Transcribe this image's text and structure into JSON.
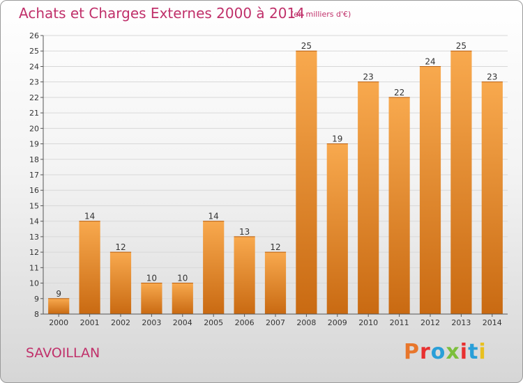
{
  "header": {
    "title": "Achats et Charges Externes 2000 à 2014",
    "subtitle": "(en milliers d'€)"
  },
  "footer": {
    "commune": "SAVOILLAN",
    "brand": "Proxiti",
    "brand_colors": [
      "#e8762b",
      "#e83030",
      "#2a9fd8",
      "#7cbf3c",
      "#e83030",
      "#2a9fd8",
      "#e8c020"
    ]
  },
  "chart_data": {
    "type": "bar",
    "title": "Achats et Charges Externes 2000 à 2014",
    "subtitle": "(en milliers d'€)",
    "xlabel": "",
    "ylabel": "",
    "categories": [
      "2000",
      "2001",
      "2002",
      "2003",
      "2004",
      "2005",
      "2006",
      "2007",
      "2008",
      "2009",
      "2010",
      "2011",
      "2012",
      "2013",
      "2014"
    ],
    "values": [
      9,
      14,
      12,
      10,
      10,
      14,
      13,
      12,
      25,
      19,
      23,
      22,
      24,
      25,
      23
    ],
    "ylim": [
      8,
      26
    ],
    "yticks": [
      8,
      9,
      10,
      11,
      12,
      13,
      14,
      15,
      16,
      17,
      18,
      19,
      20,
      21,
      22,
      23,
      24,
      25,
      26
    ],
    "grid": "horizontal",
    "bar_color_top": "#f8a94e",
    "bar_color_bottom": "#c96a12"
  }
}
